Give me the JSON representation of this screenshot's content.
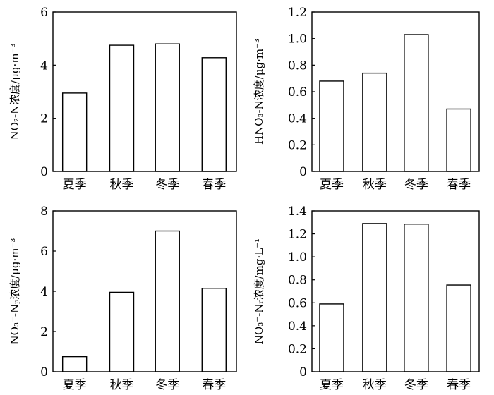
{
  "chart_data": [
    {
      "type": "bar",
      "title": "",
      "xlabel": "",
      "ylabel": "NO₂-N浓度/μg·m⁻³",
      "ylim": [
        0,
        6
      ],
      "yticks": [
        0,
        2,
        4,
        6
      ],
      "tick_labels": [
        "0",
        "2",
        "4",
        "6"
      ],
      "categories": [
        "夏季",
        "秋季",
        "冬季",
        "春季"
      ],
      "values": [
        2.95,
        4.75,
        4.8,
        4.28
      ]
    },
    {
      "type": "bar",
      "title": "",
      "xlabel": "",
      "ylabel": "HNO₃-N浓度/μg·m⁻³",
      "ylim": [
        0,
        1.2
      ],
      "yticks": [
        0,
        0.2,
        0.4,
        0.6,
        0.8,
        1.0,
        1.2
      ],
      "tick_labels": [
        "0",
        "0.2",
        "0.4",
        "0.6",
        "0.8",
        "1.0",
        "1.2"
      ],
      "categories": [
        "夏季",
        "秋季",
        "冬季",
        "春季"
      ],
      "values": [
        0.68,
        0.74,
        1.03,
        0.47
      ]
    },
    {
      "type": "bar",
      "title": "",
      "xlabel": "",
      "ylabel": "NO₃⁻-Nₚ浓度/μg·m⁻³",
      "ylim": [
        0,
        8
      ],
      "yticks": [
        0,
        2,
        4,
        6,
        8
      ],
      "tick_labels": [
        "0",
        "2",
        "4",
        "6",
        "8"
      ],
      "categories": [
        "夏季",
        "秋季",
        "冬季",
        "春季"
      ],
      "values": [
        0.75,
        3.95,
        7.0,
        4.15
      ]
    },
    {
      "type": "bar",
      "title": "",
      "xlabel": "",
      "ylabel": "NO₃⁻-Nᵣ浓度/mg·L⁻¹",
      "ylim": [
        0,
        1.4
      ],
      "yticks": [
        0,
        0.2,
        0.4,
        0.6,
        0.8,
        1.0,
        1.2,
        1.4
      ],
      "tick_labels": [
        "0",
        "0.2",
        "0.4",
        "0.6",
        "0.8",
        "1.0",
        "1.2",
        "1.4"
      ],
      "categories": [
        "夏季",
        "秋季",
        "冬季",
        "春季"
      ],
      "values": [
        0.59,
        1.29,
        1.285,
        0.755
      ]
    }
  ]
}
